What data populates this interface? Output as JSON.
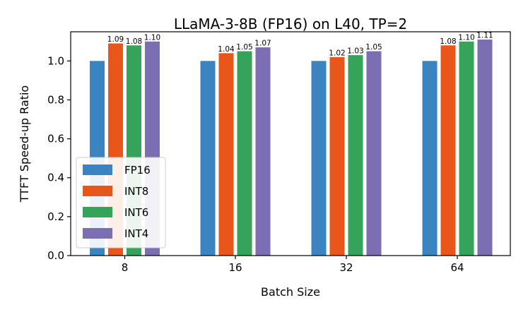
{
  "chart_data": {
    "type": "bar",
    "title": "LLaMA-3-8B (FP16) on L40, TP=2",
    "xlabel": "Batch Size",
    "ylabel": "TTFT Speed-up Ratio",
    "categories": [
      "8",
      "16",
      "32",
      "64"
    ],
    "ylim": [
      0,
      1.15
    ],
    "yticks": [
      "0.0",
      "0.2",
      "0.4",
      "0.6",
      "0.8",
      "1.0"
    ],
    "series": [
      {
        "name": "FP16",
        "color": "#3a84c1",
        "values": [
          1.0,
          1.0,
          1.0,
          1.0
        ],
        "labels": [
          "",
          "",
          "",
          ""
        ]
      },
      {
        "name": "INT8",
        "color": "#e8561a",
        "values": [
          1.09,
          1.04,
          1.02,
          1.08
        ],
        "labels": [
          "1.09",
          "1.04",
          "1.02",
          "1.08"
        ]
      },
      {
        "name": "INT6",
        "color": "#36a35a",
        "values": [
          1.08,
          1.05,
          1.03,
          1.1
        ],
        "labels": [
          "1.08",
          "1.05",
          "1.03",
          "1.10"
        ]
      },
      {
        "name": "INT4",
        "color": "#7b6eb3",
        "values": [
          1.1,
          1.07,
          1.05,
          1.11
        ],
        "labels": [
          "1.10",
          "1.07",
          "1.05",
          "1.11"
        ]
      }
    ],
    "legend": {
      "position": "lower-left",
      "entries": [
        "FP16",
        "INT8",
        "INT6",
        "INT4"
      ]
    },
    "grid": false
  }
}
